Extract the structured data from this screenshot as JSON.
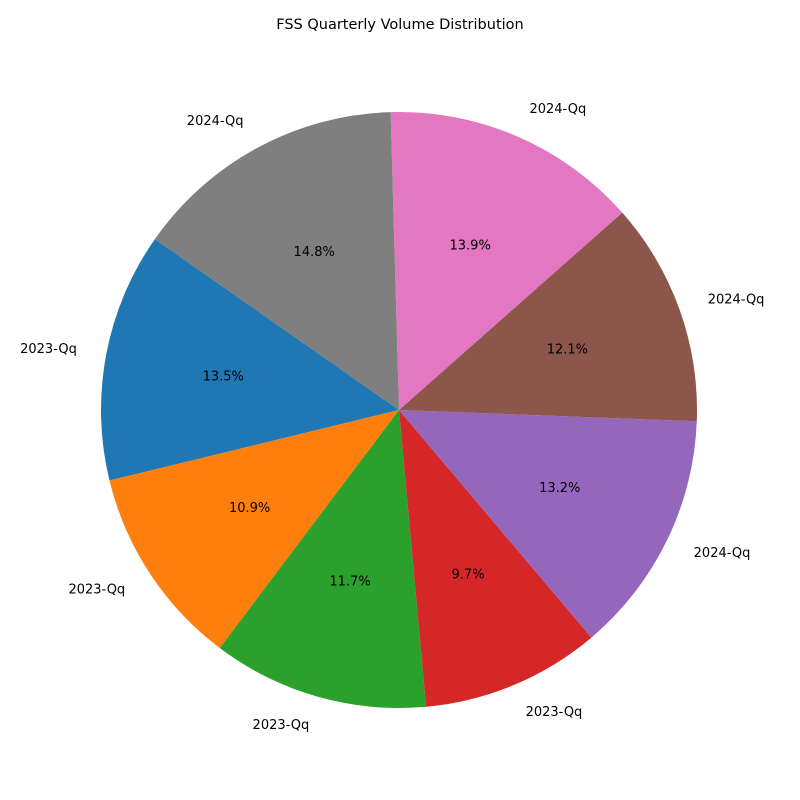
{
  "chart_data": {
    "type": "pie",
    "title": "FSS Quarterly Volume Distribution",
    "start_angle_deg": 145,
    "direction": "counterclockwise",
    "slices": [
      {
        "label": "2023-Qq",
        "percent": 13.5,
        "pct_label": "13.5%",
        "color": "#1f77b4"
      },
      {
        "label": "2023-Qq",
        "percent": 10.9,
        "pct_label": "10.9%",
        "color": "#ff7f0e"
      },
      {
        "label": "2023-Qq",
        "percent": 11.7,
        "pct_label": "11.7%",
        "color": "#2ca02c"
      },
      {
        "label": "2023-Qq",
        "percent": 9.7,
        "pct_label": "9.7%",
        "color": "#d62728"
      },
      {
        "label": "2024-Qq",
        "percent": 13.2,
        "pct_label": "13.2%",
        "color": "#9467bd"
      },
      {
        "label": "2024-Qq",
        "percent": 12.1,
        "pct_label": "12.1%",
        "color": "#8c564b"
      },
      {
        "label": "2024-Qq",
        "percent": 13.9,
        "pct_label": "13.9%",
        "color": "#e377c2"
      },
      {
        "label": "2024-Qq",
        "percent": 14.8,
        "pct_label": "14.8%",
        "color": "#7f7f7f"
      }
    ]
  }
}
